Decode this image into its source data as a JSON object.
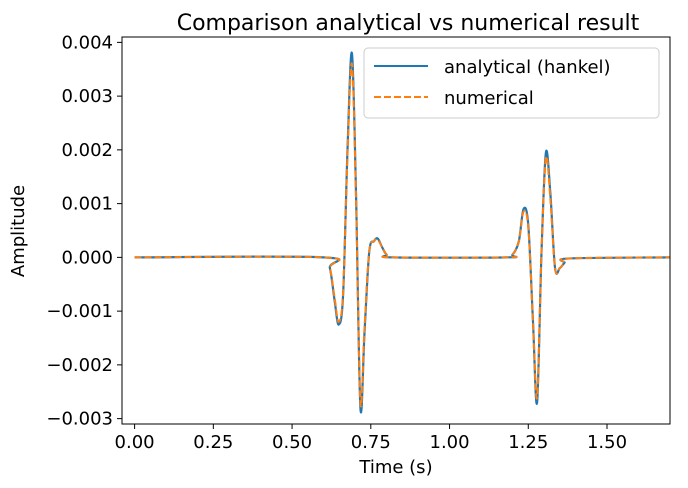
{
  "chart_data": {
    "type": "line",
    "title": "Comparison analytical vs numerical result",
    "xlabel": "Time (s)",
    "ylabel": "Amplitude",
    "xlim": [
      -0.04,
      1.7
    ],
    "ylim": [
      -0.0031,
      0.0041
    ],
    "xticks": [
      0.0,
      0.25,
      0.5,
      0.75,
      1.0,
      1.25,
      1.5
    ],
    "xtick_labels": [
      "0.00",
      "0.25",
      "0.50",
      "0.75",
      "1.00",
      "1.25",
      "1.50"
    ],
    "yticks": [
      -0.003,
      -0.002,
      -0.001,
      0.0,
      0.001,
      0.002,
      0.003,
      0.004
    ],
    "ytick_labels": [
      "−0.003",
      "−0.002",
      "−0.001",
      "0.000",
      "0.001",
      "0.002",
      "0.003",
      "0.004"
    ],
    "grid": false,
    "legend_position": "top-right",
    "series": [
      {
        "name": "analytical (hankel)",
        "color": "#1f77b4",
        "style": "solid",
        "x": [
          0.0,
          0.6,
          0.62,
          0.635,
          0.648,
          0.662,
          0.676,
          0.69,
          0.703,
          0.717,
          0.73,
          0.745,
          0.76,
          0.772,
          0.785,
          0.8,
          0.82,
          1.18,
          1.2,
          1.22,
          1.235,
          1.25,
          1.265,
          1.278,
          1.292,
          1.306,
          1.32,
          1.335,
          1.35,
          1.365,
          1.38,
          1.7
        ],
        "y": [
          0.0,
          0.0,
          -0.0002,
          -0.0008,
          -0.00125,
          -0.0007,
          0.002,
          0.0038,
          0.0012,
          -0.0028,
          -0.0014,
          0.0001,
          0.0003,
          0.00035,
          0.0002,
          5e-05,
          0.0,
          0.0,
          5e-05,
          0.0003,
          0.0009,
          0.0006,
          -0.0012,
          -0.0027,
          0.0001,
          0.00195,
          0.0012,
          -0.0002,
          -0.0002,
          -0.0001,
          -2e-05,
          0.0
        ]
      },
      {
        "name": "numerical",
        "color": "#ff7f0e",
        "style": "dashed",
        "x": [
          0.0,
          0.6,
          0.62,
          0.635,
          0.648,
          0.662,
          0.676,
          0.69,
          0.703,
          0.717,
          0.73,
          0.745,
          0.76,
          0.772,
          0.785,
          0.8,
          0.82,
          1.18,
          1.2,
          1.22,
          1.235,
          1.25,
          1.265,
          1.278,
          1.292,
          1.306,
          1.32,
          1.335,
          1.35,
          1.365,
          1.38,
          1.7
        ],
        "y": [
          0.0,
          0.0,
          -0.0002,
          -0.00075,
          -0.0012,
          -0.00065,
          0.0019,
          0.0036,
          0.0011,
          -0.0027,
          -0.0013,
          0.0001,
          0.0003,
          0.00033,
          0.0002,
          5e-05,
          0.0,
          0.0,
          5e-05,
          0.0003,
          0.00085,
          0.00055,
          -0.0012,
          -0.0026,
          0.0001,
          0.00185,
          0.0011,
          -0.0002,
          -0.0002,
          -0.0001,
          -2e-05,
          0.0
        ]
      }
    ]
  }
}
